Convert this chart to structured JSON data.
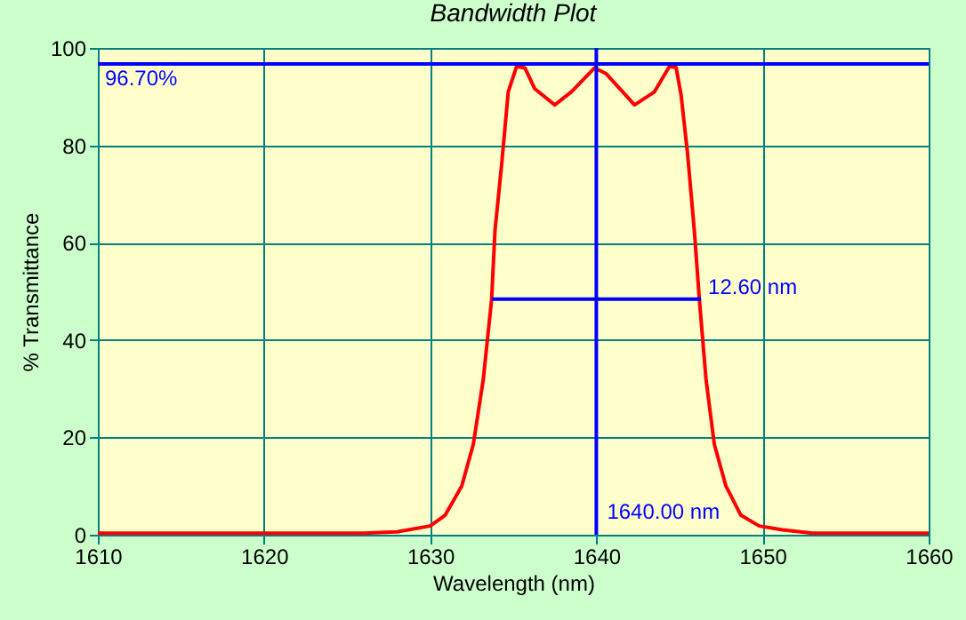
{
  "chart_data": {
    "type": "line",
    "title": "Bandwidth Plot",
    "xlabel": "Wavelength (nm)",
    "ylabel": "% Transmittance",
    "x": [
      1610,
      1620,
      1626,
      1628,
      1630.0,
      1630.9,
      1631.9,
      1632.6,
      1633.2,
      1633.7,
      1633.9,
      1634.3,
      1634.7,
      1635.2,
      1635.7,
      1636.3,
      1637.5,
      1638.5,
      1639.9,
      1640.6,
      1642.3,
      1643.5,
      1644.4,
      1644.8,
      1645.1,
      1645.5,
      1645.9,
      1646.2,
      1646.6,
      1647.1,
      1647.8,
      1648.7,
      1649.8,
      1651.2,
      1653,
      1660
    ],
    "series": [
      {
        "color": "#ff0000",
        "values": [
          0.3,
          0.3,
          0.3,
          0.6,
          1.8,
          4,
          10,
          18.6,
          32,
          48.4,
          62.4,
          76,
          91,
          96.2,
          95.9,
          91.6,
          88.3,
          91,
          95.9,
          94.7,
          88.3,
          91,
          96.2,
          96,
          90.4,
          78,
          62.4,
          48.4,
          32,
          18.6,
          10,
          4,
          1.8,
          1.0,
          0.3,
          0.3
        ]
      },
      {
        "color": "#0000ff",
        "x": [
          1633.7,
          1646.3
        ],
        "values": [
          48.4,
          48.4
        ]
      }
    ],
    "xlim": [
      1610,
      1660
    ],
    "ylim": [
      0,
      100
    ],
    "xticks": [
      1610,
      1620,
      1630,
      1640,
      1650,
      1660
    ],
    "yticks": [
      0,
      20,
      40,
      60,
      80,
      100
    ],
    "grid": true,
    "ref_lines": [
      {
        "axis": "y",
        "value": 96.7,
        "label": "96.70%",
        "color": "#0000ff"
      },
      {
        "axis": "x",
        "value": 1640,
        "label": "1640.00 nm",
        "color": "#0000ff"
      }
    ],
    "annotations": [
      {
        "text": "12.60 nm",
        "x": 1646.3,
        "y": 48.4
      }
    ]
  }
}
